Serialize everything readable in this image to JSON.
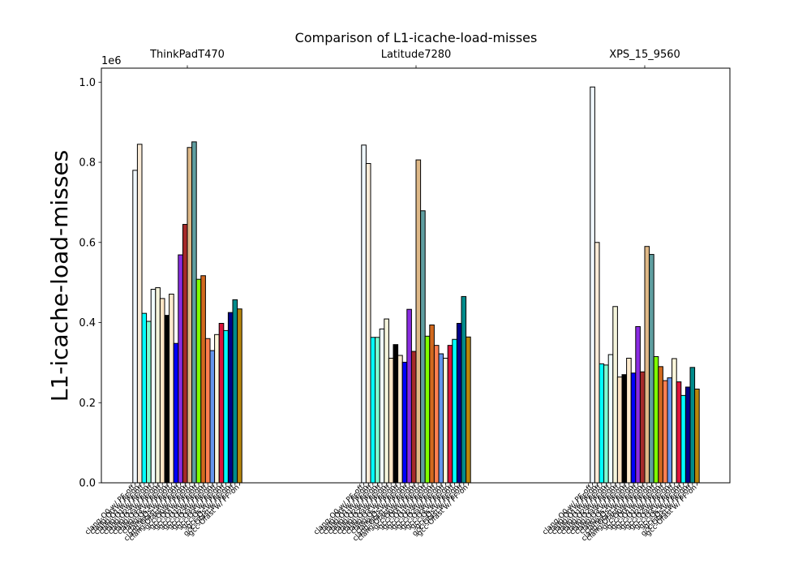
{
  "chart_data": {
    "type": "bar",
    "title": "Comparison of L1-icache-load-misses",
    "ylabel": "L1-icache-load-misses",
    "y_offset_label": "1e6",
    "ylim": [
      0,
      1.035
    ],
    "yticks": [
      "0.0",
      "0.2",
      "0.4",
      "0.6",
      "0.8",
      "1.0"
    ],
    "ytick_values": [
      0.0,
      0.2,
      0.4,
      0.6,
      0.8,
      1.0
    ],
    "grid": false,
    "groups": [
      "ThinkPadT470",
      "Latitude7280",
      "XPS_15_9560"
    ],
    "bar_labels": [
      "clang-O0 w/ PF-off",
      "clang-O0 w/ PF-on",
      "clang-O1 w/ PF-off",
      "clang-O1 w/ PF-on",
      "clang-O2 w/ PF-off",
      "clang-O2 w/ PF-on",
      "clang-O3 w/ PF-off",
      "clang-O3 w/ PF-on",
      "clang-Os w/ PF-off",
      "clang-Os w/ PF-on",
      "clang-Ofast w/ PF-off",
      "clang-Ofast w/ PF-on",
      "gcc-O0 w/ PF-off",
      "gcc-O0 w/ PF-on",
      "gcc-O1 w/ PF-off",
      "gcc-O1 w/ PF-on",
      "gcc-O2 w/ PF-off",
      "gcc-O2 w/ PF-on",
      "gcc-O3 w/ PF-off",
      "gcc-O3 w/ PF-on",
      "gcc-Os w/ PF-off",
      "gcc-Os w/ PF-on",
      "gcc-Ofast w/ PF-off",
      "gcc-Ofast w/ PF-on"
    ],
    "colors": [
      "#f0f8ff",
      "#faebd7",
      "#00ffff",
      "#7fffd4",
      "#f0ffff",
      "#f5f5dc",
      "#ffe4c4",
      "#000000",
      "#ffebcd",
      "#0000ff",
      "#8a2be2",
      "#a52a2a",
      "#deb887",
      "#5f9ea0",
      "#7fff00",
      "#d2691e",
      "#ff7f50",
      "#6495ed",
      "#fff8dc",
      "#dc143c",
      "#00ffff",
      "#00008b",
      "#008b8b",
      "#b8860b"
    ],
    "series": [
      {
        "values": [
          0.78,
          0.845,
          0.423,
          0.403,
          0.483,
          0.487,
          0.46,
          0.418,
          0.471,
          0.348,
          0.569,
          0.645,
          0.837,
          0.851,
          0.508,
          0.517,
          0.36,
          0.33,
          0.37,
          0.398,
          0.38,
          0.425,
          0.457,
          0.434
        ]
      },
      {
        "values": [
          0.843,
          0.797,
          0.363,
          0.363,
          0.384,
          0.409,
          0.311,
          0.345,
          0.318,
          0.301,
          0.433,
          0.328,
          0.806,
          0.679,
          0.366,
          0.394,
          0.343,
          0.322,
          0.311,
          0.343,
          0.358,
          0.398,
          0.465,
          0.364
        ]
      },
      {
        "values": [
          0.988,
          0.6,
          0.297,
          0.294,
          0.32,
          0.44,
          0.264,
          0.27,
          0.311,
          0.274,
          0.39,
          0.277,
          0.59,
          0.57,
          0.315,
          0.29,
          0.255,
          0.262,
          0.31,
          0.252,
          0.218,
          0.239,
          0.288,
          0.234
        ]
      }
    ]
  }
}
